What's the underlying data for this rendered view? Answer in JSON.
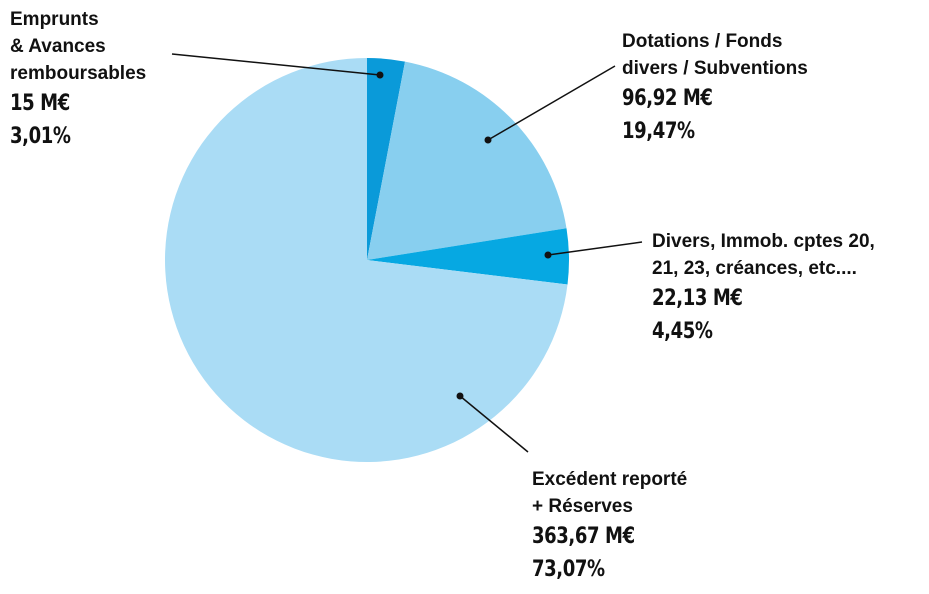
{
  "chart_data": {
    "type": "pie",
    "categories": [
      "Emprunts\n& Avances\nremboursables",
      "Dotations / Fonds\ndivers / Subventions",
      "Divers, Immob. cptes 20,\n21, 23, créances, etc....",
      "Excédent reporté\n+ Réserves"
    ],
    "values": [
      15,
      96.92,
      22.13,
      363.67
    ],
    "value_labels": [
      "15 M€",
      "96,92 M€",
      "22,13 M€",
      "363,67 M€"
    ],
    "percentages": [
      3.01,
      19.47,
      4.45,
      73.07
    ],
    "percentage_labels": [
      "3,01%",
      "19,47%",
      "4,45%",
      "73,07%"
    ],
    "colors": [
      "#0a9ad9",
      "#88cfef",
      "#06a8e2",
      "#aadcf5"
    ]
  }
}
